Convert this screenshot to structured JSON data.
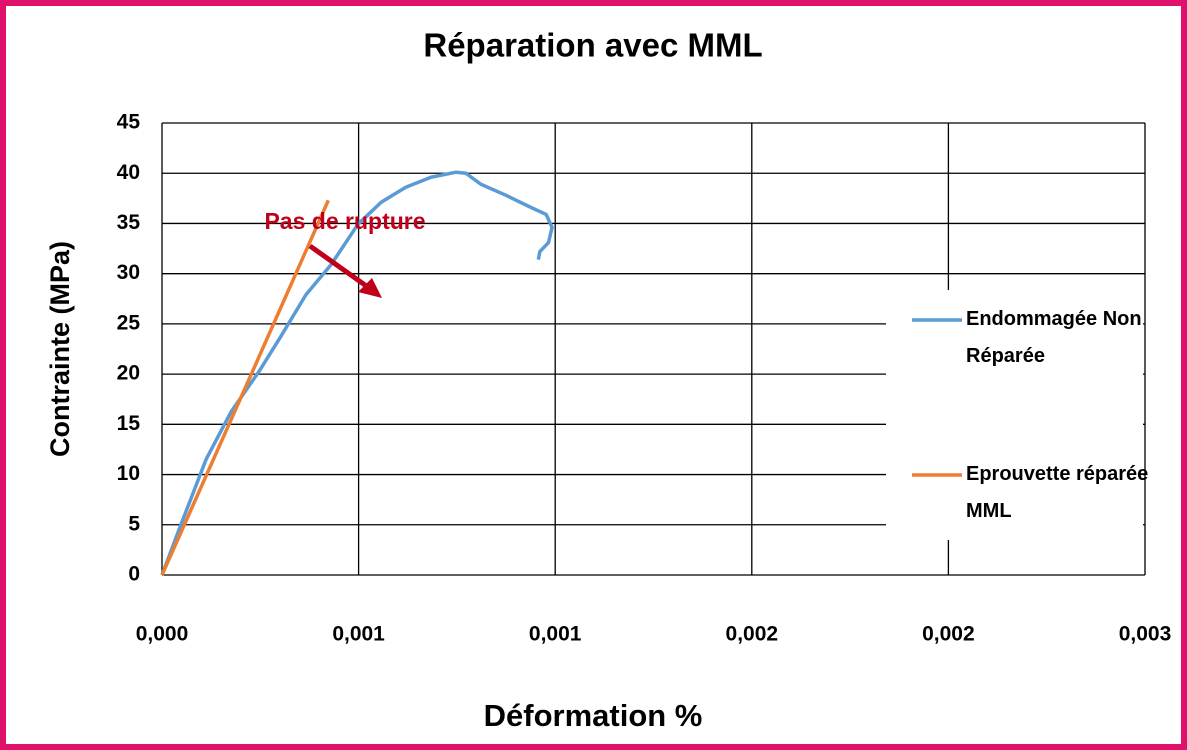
{
  "chart_data": {
    "type": "line",
    "title": "Réparation avec MML",
    "x_label": "Déformation %",
    "y_label": "Contrainte (MPa)",
    "annotation": "Pas de rupture",
    "xlim": [
      0,
      0.0025
    ],
    "xticks": [
      {
        "value": 0,
        "label": "0,000"
      },
      {
        "value": 0.0005,
        "label": "0,001"
      },
      {
        "value": 0.001,
        "label": "0,001"
      },
      {
        "value": 0.0015,
        "label": "0,002"
      },
      {
        "value": 0.002,
        "label": "0,002"
      },
      {
        "value": 0.0025,
        "label": "0,003"
      }
    ],
    "ylim": [
      0,
      45
    ],
    "yticks": [
      0,
      5,
      10,
      15,
      20,
      25,
      30,
      35,
      40,
      45
    ],
    "grid": true,
    "legend": "right",
    "series": [
      {
        "name": "Endommagée Non Réparée",
        "color": "#5b9bd5",
        "x": [
          0,
          4.8e-05,
          0.000112,
          0.000175,
          0.000249,
          0.000303,
          0.000366,
          0.00043,
          0.000498,
          0.000557,
          0.00062,
          0.000684,
          0.000748,
          0.000773,
          0.000811,
          0.000875,
          0.000938,
          0.000977,
          0.000992,
          0.000983,
          0.000961,
          0.000957
        ],
        "values": [
          0,
          5,
          11.5,
          16.2,
          20.4,
          23.8,
          27.9,
          30.9,
          34.9,
          37.1,
          38.6,
          39.6,
          40.1,
          40,
          38.9,
          37.8,
          36.6,
          35.9,
          34.6,
          33.1,
          32.2,
          31.4
        ]
      },
      {
        "name": "Eprouvette réparée MML",
        "color": "#ed7d31",
        "x": [
          0,
          0.0002,
          0.000423
        ],
        "values": [
          0,
          17.6,
          37.3
        ]
      }
    ]
  }
}
